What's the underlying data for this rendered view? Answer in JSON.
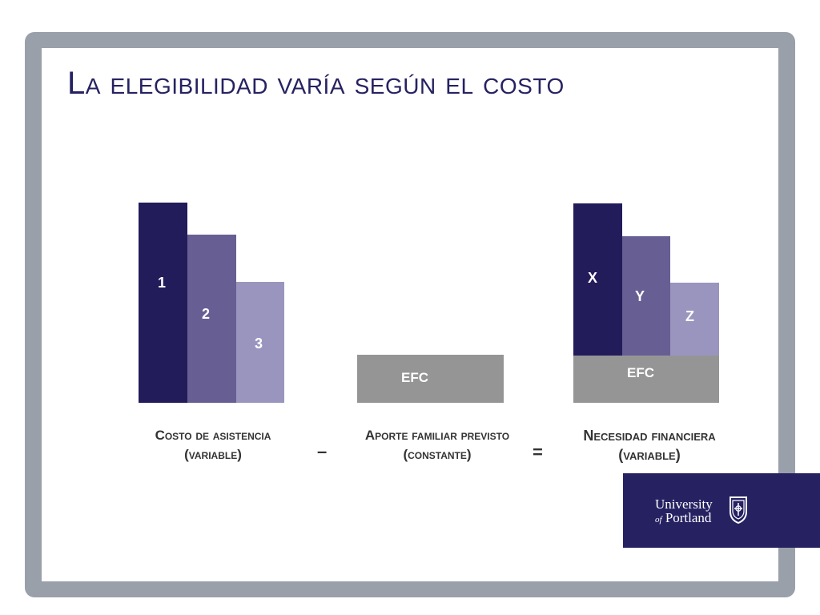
{
  "slide": {
    "title": "La elegibilidad varía según el costo"
  },
  "groups": {
    "cost": {
      "bars": [
        {
          "label": "1",
          "level": 1.0
        },
        {
          "label": "2",
          "level": 0.84
        },
        {
          "label": "3",
          "level": 0.6
        }
      ],
      "caption_line1": "Costo de asistencia",
      "caption_line2": "(variable)"
    },
    "efc": {
      "label": "EFC",
      "caption_line1": "Aporte familiar previsto",
      "caption_line2": "(constante)"
    },
    "need": {
      "bars": [
        {
          "label": "X",
          "level": 1.0
        },
        {
          "label": "Y",
          "level": 0.84
        },
        {
          "label": "Z",
          "level": 0.6
        }
      ],
      "efc_label": "EFC",
      "caption_line1": "Necesidad financiera",
      "caption_line2": "(variable)"
    }
  },
  "operators": {
    "minus": "–",
    "equals": "="
  },
  "logo": {
    "line1": "University",
    "of": "of",
    "line2": "Portland"
  },
  "colors": {
    "dark": "#221c5a",
    "mid": "#675f93",
    "light": "#9a95be",
    "gray": "#959595",
    "brand": "#262262"
  }
}
